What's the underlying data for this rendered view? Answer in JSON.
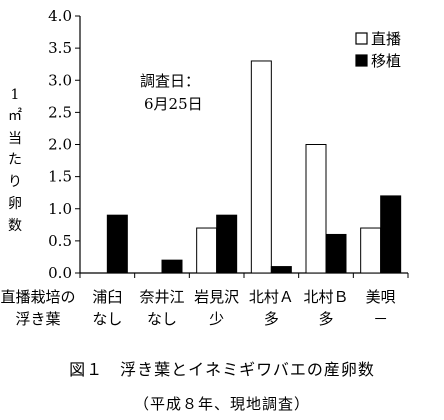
{
  "chart_data": {
    "type": "bar",
    "categories": [
      {
        "line1": "浦臼",
        "line2": "なし"
      },
      {
        "line1": "奈井江",
        "line2": "なし"
      },
      {
        "line1": "岩見沢",
        "line2": "少"
      },
      {
        "line1": "北村Ａ",
        "line2": "多"
      },
      {
        "line1": "北村Ｂ",
        "line2": "多"
      },
      {
        "line1": "美唄",
        "line2": "－"
      }
    ],
    "series": [
      {
        "name": "直播",
        "values": [
          0,
          0,
          0.7,
          3.3,
          2.0,
          0.7
        ],
        "fill": "#ffffff"
      },
      {
        "name": "移植",
        "values": [
          0.9,
          0.2,
          0.9,
          0.1,
          0.6,
          1.2
        ],
        "fill": "#000000"
      }
    ],
    "ylim": [
      0,
      4.0
    ],
    "yticks": [
      "0.0",
      "0.5",
      "1.0",
      "1.5",
      "2.0",
      "2.5",
      "3.0",
      "3.5",
      "4.0"
    ],
    "ylabel": [
      "1",
      "㎡",
      "当",
      "た",
      "り",
      "卵",
      "数"
    ],
    "xrow_label": [
      "直播栽培の",
      "浮き葉"
    ],
    "annotation": [
      "調査日：",
      "6月25日"
    ],
    "legend_position": "top-right"
  },
  "caption": {
    "title": "図１　浮き葉とイネミギワバエの産卵数",
    "note": "（平成８年、現地調査）"
  }
}
